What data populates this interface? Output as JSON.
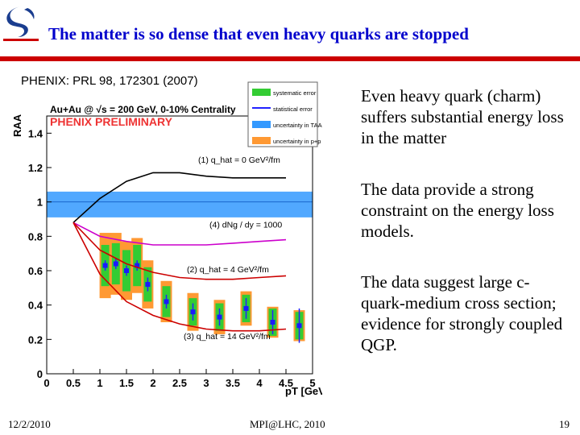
{
  "slide": {
    "title": "The matter is so dense that even heavy quarks are stopped",
    "citation": "PHENIX: PRL 98, 172301 (2007)",
    "bullets": [
      "Even heavy quark (charm) suffers substantial energy loss in the matter",
      "The data provide a strong constraint on the energy loss models.",
      "The data suggest large c-quark-medium cross section; evidence for strongly coupled QGP."
    ],
    "footer": {
      "date": "12/2/2010",
      "center": "MPI@LHC, 2010",
      "page": "19"
    },
    "colors": {
      "title": "#0000cc",
      "rule": "#cc0000"
    },
    "logo_icon": "university-logo"
  },
  "chart_data": {
    "type": "scatter",
    "header": "Au+Au @ √s = 200 GeV, 0-10% Centrality",
    "preliminary": "PHENIX PRELIMINARY",
    "xlabel": "pT [GeV/c]",
    "ylabel": "RAA",
    "xlim": [
      0,
      5
    ],
    "ylim": [
      0,
      1.5
    ],
    "x_ticks": [
      "0",
      "0.5",
      "1",
      "1.5",
      "2",
      "2.5",
      "3",
      "3.5",
      "4",
      "4.5",
      "5"
    ],
    "y_ticks": [
      "0",
      "0.2",
      "0.4",
      "0.6",
      "0.8",
      "1",
      "1.2",
      "1.4"
    ],
    "legend": [
      {
        "label": "systematic error",
        "color": "#33cc33"
      },
      {
        "label": "statistical error",
        "color": "#2222ff"
      },
      {
        "label": "uncertainty in TAA",
        "color": "#3399ff"
      },
      {
        "label": "uncertainty in p+p ref.",
        "color": "#ff9933"
      }
    ],
    "taa_band": [
      0.91,
      1.06
    ],
    "points": [
      {
        "x": 1.1,
        "y": 0.63,
        "syst": 0.12,
        "pp": 0.19,
        "stat": 0.03
      },
      {
        "x": 1.3,
        "y": 0.64,
        "syst": 0.12,
        "pp": 0.18,
        "stat": 0.03
      },
      {
        "x": 1.5,
        "y": 0.6,
        "syst": 0.12,
        "pp": 0.17,
        "stat": 0.03
      },
      {
        "x": 1.7,
        "y": 0.63,
        "syst": 0.12,
        "pp": 0.16,
        "stat": 0.03
      },
      {
        "x": 1.9,
        "y": 0.52,
        "syst": 0.1,
        "pp": 0.14,
        "stat": 0.04
      },
      {
        "x": 2.25,
        "y": 0.42,
        "syst": 0.09,
        "pp": 0.12,
        "stat": 0.04
      },
      {
        "x": 2.75,
        "y": 0.36,
        "syst": 0.08,
        "pp": 0.11,
        "stat": 0.05
      },
      {
        "x": 3.25,
        "y": 0.33,
        "syst": 0.08,
        "pp": 0.1,
        "stat": 0.05
      },
      {
        "x": 3.75,
        "y": 0.38,
        "syst": 0.08,
        "pp": 0.1,
        "stat": 0.06
      },
      {
        "x": 4.25,
        "y": 0.3,
        "syst": 0.08,
        "pp": 0.09,
        "stat": 0.07
      },
      {
        "x": 4.75,
        "y": 0.28,
        "syst": 0.08,
        "pp": 0.09,
        "stat": 0.1
      }
    ],
    "curves": [
      {
        "name": "(1) q_hat = 0 GeV²/fm",
        "color": "#000000",
        "x": [
          0.5,
          1.0,
          1.5,
          2.0,
          2.5,
          3.0,
          3.5,
          4.0,
          4.5
        ],
        "y": [
          0.88,
          1.02,
          1.12,
          1.17,
          1.17,
          1.15,
          1.14,
          1.14,
          1.14
        ]
      },
      {
        "name": "(4) dNg / dy = 1000",
        "color": "#cc00cc",
        "x": [
          0.5,
          1.0,
          1.5,
          2.0,
          2.5,
          3.0,
          3.5,
          4.0,
          4.5
        ],
        "y": [
          0.88,
          0.8,
          0.77,
          0.75,
          0.75,
          0.75,
          0.76,
          0.77,
          0.78
        ]
      },
      {
        "name": "(2) q_hat = 4 GeV²/fm",
        "color": "#cc0000",
        "x": [
          0.5,
          1.0,
          1.5,
          2.0,
          2.5,
          3.0,
          3.5,
          4.0,
          4.5
        ],
        "y": [
          0.88,
          0.72,
          0.64,
          0.59,
          0.56,
          0.55,
          0.55,
          0.56,
          0.57
        ]
      },
      {
        "name": "(3) q_hat = 14 GeV²/fm",
        "color": "#cc0000",
        "x": [
          0.5,
          1.0,
          1.5,
          2.0,
          2.5,
          3.0,
          3.5,
          4.0,
          4.5
        ],
        "y": [
          0.88,
          0.58,
          0.42,
          0.34,
          0.29,
          0.26,
          0.25,
          0.25,
          0.26
        ]
      }
    ],
    "grid": false,
    "legend_position": "top-right"
  }
}
